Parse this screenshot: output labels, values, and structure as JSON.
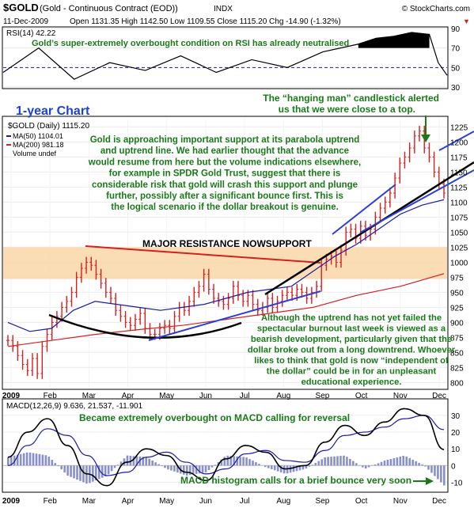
{
  "header": {
    "symbol": "$GOLD",
    "contract": "(Gold - Continuous Contract (EOD))",
    "exchange": "INDX",
    "watermark": "© StockCharts.com",
    "date": "11-Dec-2009",
    "quote": "Open 1131.35  High 1142.50  Low 1109.55  Close 1115.20  Chg -14.90 (-1.32%)",
    "quote_arrow": "▼"
  },
  "rsi_panel": {
    "label": "RSI(14) 42.22",
    "annotation": "Gold’s super-extremely overbought condition on RSI has already neutralised"
  },
  "price_panel": {
    "chart_label": "1-year Chart",
    "legend": [
      "$GOLD (Daily) 1115.20",
      "MA(50) 1104.01",
      "MA(200) 981.18",
      "Volume undef"
    ],
    "resistance_label": "MAJOR RESISTANCE NOWSUPPORT",
    "annotation_hanging_man": "The “hanging man” candlestick alerted us that we were close to a top.",
    "annotation_main": "Gold is approaching important support at its parabola uptrend and uptrend line. We had earlier thought that the advance would resume from here but the volume indications elsewhere, for example in SPDR Gold Trust, suggest that there is considerable risk that gold will crash this support and plunge further, possibly after a significant bounce first. This is the logical scenario if the dollar breakout is genuine.",
    "annotation_bottom": "Although the uptrend has not yet failed the spectacular burnout last week is viewed as a bearish development, particularly given that the dollar broke out from a long downtrend. Whoever likes to think that gold is now “independent of the dollar” could be in for an unpleasant educational experience."
  },
  "macd_panel": {
    "label": "MACD(12,26,9) 9.636, 21.537, -11.901",
    "annotation_top": "Became extremely overbought on MACD calling for reversal",
    "annotation_bottom": "MACD histogram calls for a brief bounce very soon"
  },
  "colors": {
    "price_bar": "#d42020",
    "ma50": "#1a1aa8",
    "ma200": "#d42020",
    "annotation": "#1a7a1a",
    "annotation_blue": "#1c3fd6",
    "resistance_band": "#f9d7a8",
    "trendline_red": "#d42020",
    "trendline_black": "#000000",
    "trendline_blue": "#2a3fd6",
    "histogram": "#8890c8"
  },
  "chart_data": [
    {
      "type": "line",
      "name": "RSI",
      "ylim": [
        30,
        90
      ],
      "yticks": [
        30,
        50,
        70,
        90
      ],
      "x_index": [
        0,
        20,
        40,
        60,
        80,
        100,
        120,
        140,
        160,
        180,
        200,
        210,
        220,
        230,
        240,
        245,
        250
      ],
      "values": [
        45,
        70,
        38,
        55,
        47,
        62,
        45,
        58,
        50,
        66,
        74,
        80,
        82,
        86,
        84,
        55,
        42
      ]
    },
    {
      "type": "line",
      "name": "$GOLD Daily",
      "ylim": [
        790,
        1240
      ],
      "yticks": [
        800,
        825,
        850,
        875,
        900,
        925,
        950,
        975,
        1000,
        1025,
        1050,
        1075,
        1100,
        1125,
        1150,
        1175,
        1200,
        1225
      ],
      "xticks": [
        "2009",
        "Feb",
        "Mar",
        "Apr",
        "May",
        "Jun",
        "Jul",
        "Aug",
        "Sep",
        "Oct",
        "Nov",
        "Dec"
      ],
      "resistance_band": [
        972,
        1025
      ],
      "close": [
        870,
        860,
        845,
        830,
        820,
        840,
        815,
        860,
        880,
        900,
        910,
        925,
        935,
        950,
        975,
        990,
        1000,
        995,
        980,
        965,
        950,
        940,
        920,
        910,
        900,
        895,
        905,
        915,
        890,
        880,
        880,
        890,
        895,
        890,
        910,
        925,
        920,
        935,
        950,
        960,
        980,
        955,
        940,
        935,
        930,
        940,
        960,
        945,
        935,
        945,
        930,
        920,
        925,
        940,
        925,
        935,
        945,
        950,
        945,
        955,
        950,
        940,
        950,
        960,
        995,
        1005,
        1010,
        1000,
        1020,
        1050,
        1055,
        1040,
        1060,
        1045,
        1055,
        1075,
        1090,
        1100,
        1115,
        1140,
        1165,
        1175,
        1190,
        1210,
        1218,
        1190,
        1175,
        1150,
        1130,
        1115
      ],
      "ma50_points": [
        [
          0,
          900
        ],
        [
          10,
          885
        ],
        [
          20,
          890
        ],
        [
          30,
          920
        ],
        [
          40,
          935
        ],
        [
          50,
          930
        ],
        [
          60,
          925
        ],
        [
          70,
          920
        ],
        [
          80,
          925
        ],
        [
          90,
          930
        ],
        [
          100,
          940
        ],
        [
          110,
          950
        ],
        [
          120,
          955
        ],
        [
          130,
          960
        ],
        [
          140,
          985
        ],
        [
          150,
          1010
        ],
        [
          160,
          1030
        ],
        [
          170,
          1055
        ],
        [
          180,
          1080
        ],
        [
          190,
          1095
        ],
        [
          200,
          1104
        ]
      ],
      "ma200_points": [
        [
          0,
          860
        ],
        [
          20,
          870
        ],
        [
          40,
          880
        ],
        [
          60,
          888
        ],
        [
          80,
          895
        ],
        [
          100,
          905
        ],
        [
          120,
          915
        ],
        [
          140,
          925
        ],
        [
          160,
          945
        ],
        [
          180,
          960
        ],
        [
          200,
          981
        ]
      ]
    },
    {
      "type": "line",
      "name": "MACD",
      "ylim": [
        -15,
        38
      ],
      "yticks": [
        -10,
        0,
        10,
        20,
        30
      ],
      "macd": [
        5,
        20,
        28,
        12,
        -5,
        -12,
        2,
        10,
        6,
        -4,
        -9,
        4,
        12,
        8,
        -2,
        0,
        14,
        24,
        18,
        26,
        34,
        30,
        9.6
      ],
      "signal": [
        0,
        12,
        22,
        18,
        6,
        -6,
        -4,
        5,
        8,
        2,
        -5,
        -2,
        7,
        9,
        3,
        2,
        9,
        18,
        20,
        23,
        28,
        30,
        21.5
      ]
    }
  ]
}
